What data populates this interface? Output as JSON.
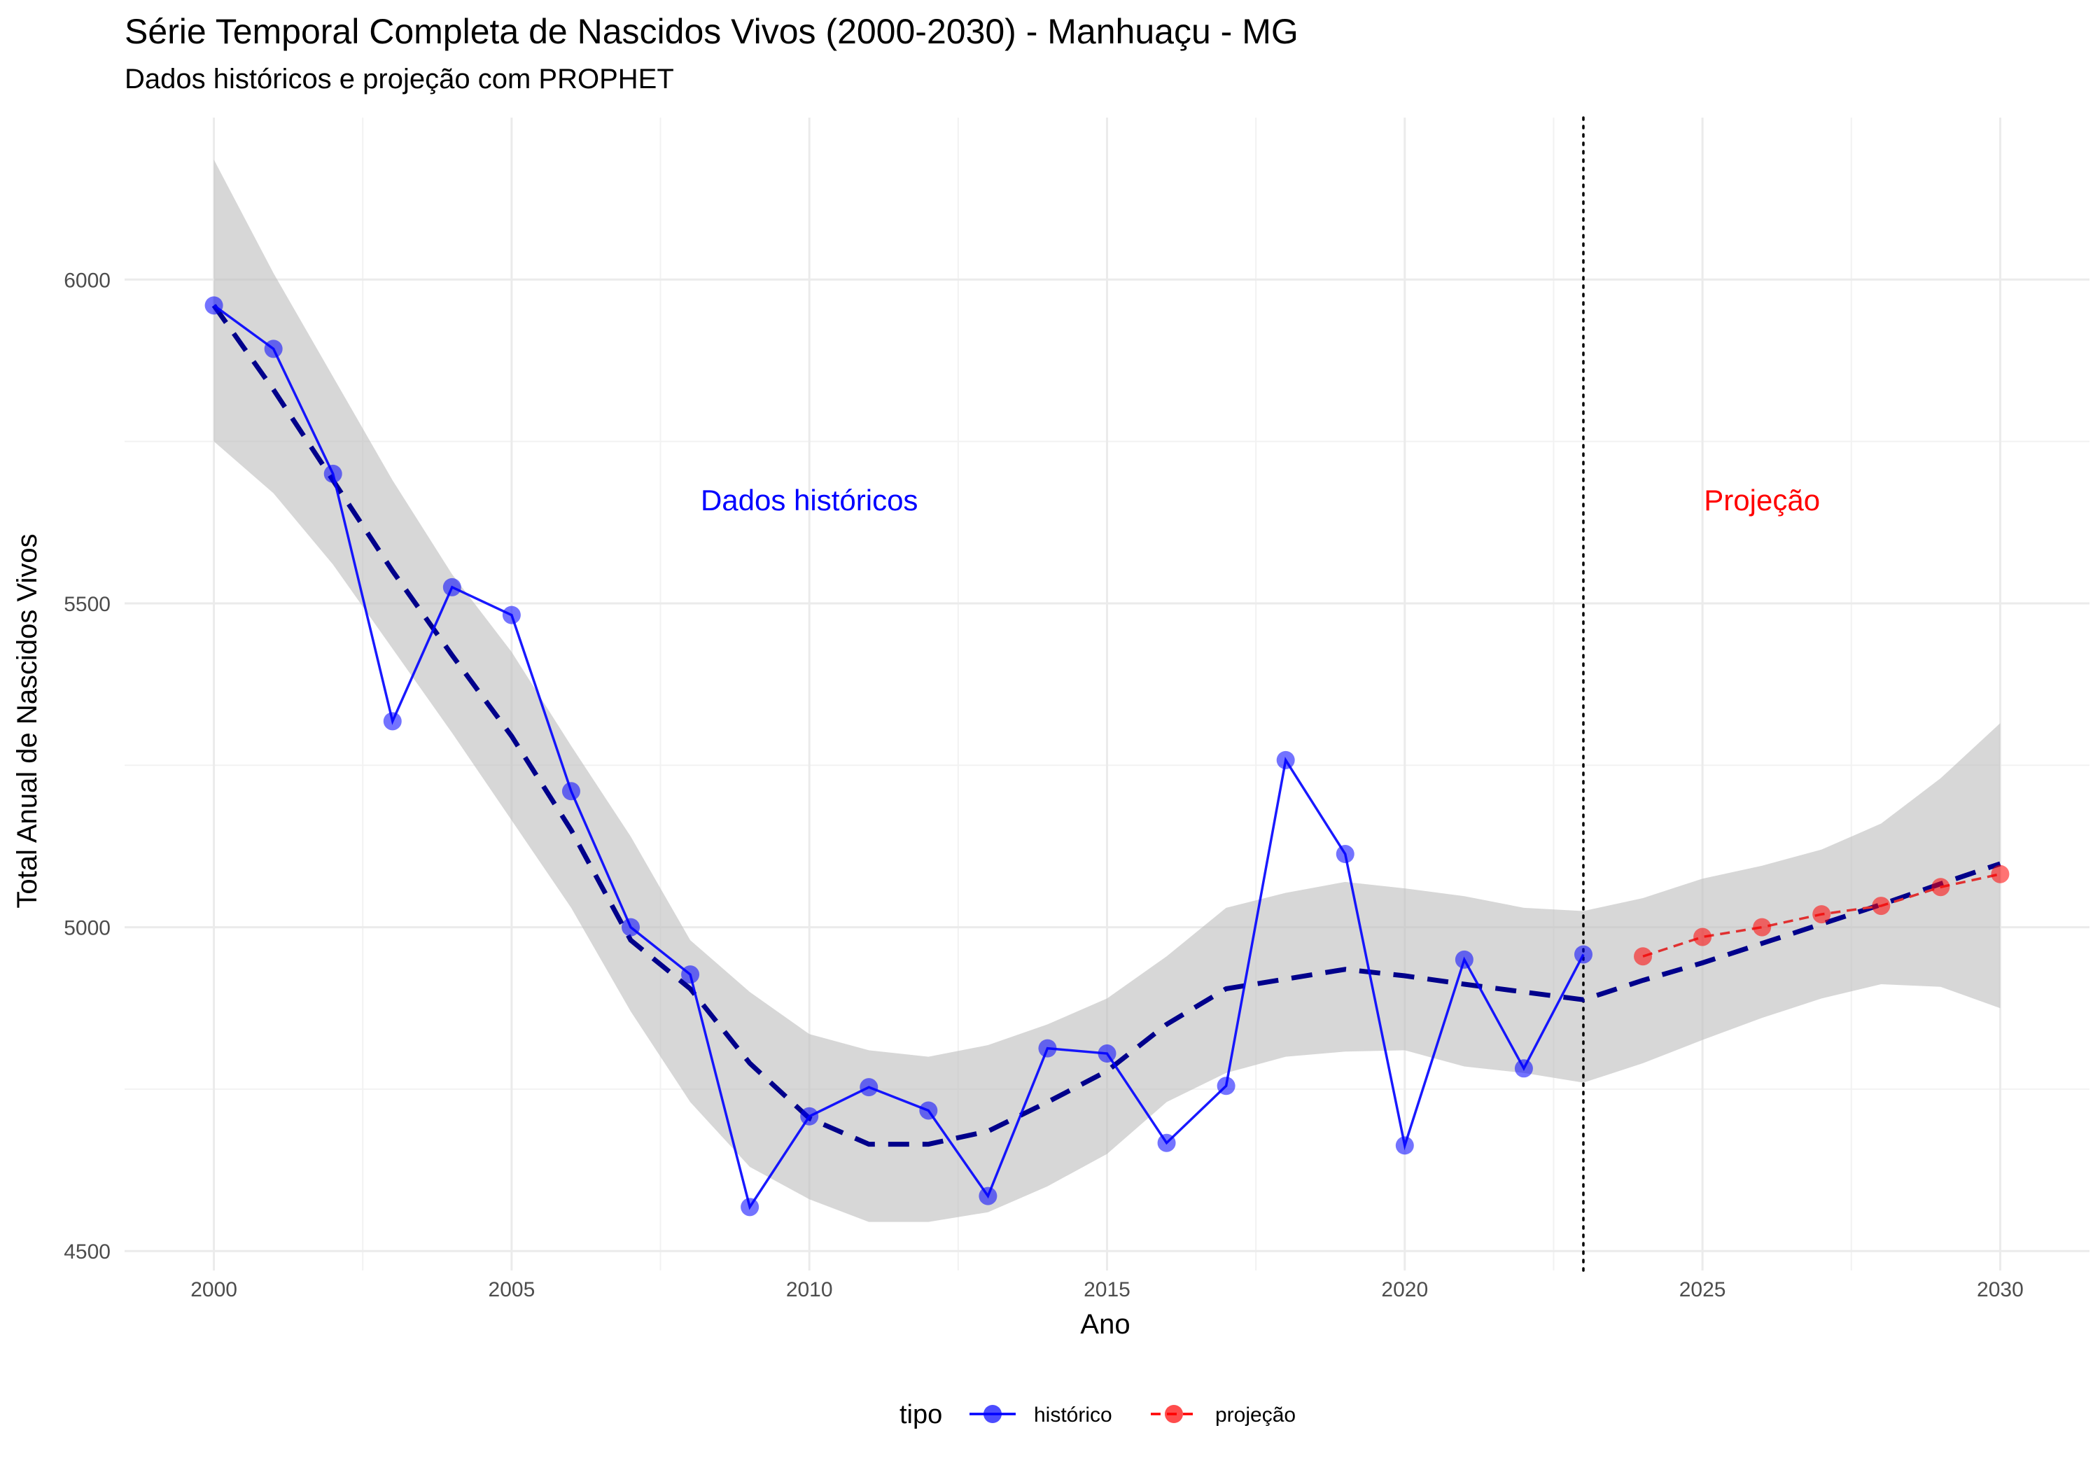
{
  "chart_data": {
    "type": "line",
    "title": "Série Temporal Completa de Nascidos Vivos (2000-2030) -  Manhuaçu - MG",
    "subtitle": "Dados históricos e projeção com PROPHET",
    "xlabel": "Ano",
    "ylabel": "Total Anual de Nascidos Vivos",
    "xlim": [
      1998.5,
      2031.5
    ],
    "ylim": [
      4470,
      6250
    ],
    "x_ticks": [
      2000,
      2005,
      2010,
      2015,
      2020,
      2025,
      2030
    ],
    "y_ticks": [
      4500,
      5000,
      5500,
      6000
    ],
    "grid": true,
    "legend": {
      "position": "bottom",
      "title": "tipo",
      "entries": [
        {
          "label": "histórico",
          "color": "#0000ff"
        },
        {
          "label": "projeção",
          "color": "#ff0000"
        }
      ]
    },
    "annotations": [
      {
        "text": "Dados históricos",
        "x": 2010,
        "y": 5660,
        "color": "#0000ff"
      },
      {
        "text": "Projeção",
        "x": 2026,
        "y": 5660,
        "color": "#ff0000"
      }
    ],
    "divider_x": 2023,
    "series": [
      {
        "name": "histórico",
        "color": "#0000ff",
        "x": [
          2000,
          2001,
          2002,
          2003,
          2004,
          2005,
          2006,
          2007,
          2008,
          2009,
          2010,
          2011,
          2012,
          2013,
          2014,
          2015,
          2016,
          2017,
          2018,
          2019,
          2020,
          2021,
          2022,
          2023
        ],
        "y": [
          5960,
          5893,
          5700,
          5318,
          5525,
          5482,
          5210,
          5000,
          4927,
          4568,
          4708,
          4753,
          4717,
          4585,
          4813,
          4805,
          4667,
          4755,
          5258,
          5113,
          4663,
          4950,
          4782,
          4958
        ]
      },
      {
        "name": "projeção",
        "color": "#ff0000",
        "x": [
          2024,
          2025,
          2026,
          2027,
          2028,
          2029,
          2030
        ],
        "y": [
          4955,
          4985,
          5000,
          5020,
          5033,
          5062,
          5082
        ]
      }
    ],
    "trend": {
      "color": "#00008b",
      "x": [
        2000,
        2001,
        2002,
        2003,
        2004,
        2005,
        2006,
        2007,
        2008,
        2009,
        2010,
        2011,
        2012,
        2013,
        2014,
        2015,
        2016,
        2017,
        2018,
        2019,
        2020,
        2021,
        2022,
        2023,
        2024,
        2025,
        2026,
        2027,
        2028,
        2029,
        2030
      ],
      "y": [
        5960,
        5830,
        5690,
        5550,
        5420,
        5295,
        5150,
        4980,
        4905,
        4790,
        4705,
        4665,
        4665,
        4685,
        4730,
        4778,
        4850,
        4905,
        4920,
        4935,
        4925,
        4912,
        4900,
        4888,
        4918,
        4945,
        4975,
        5005,
        5035,
        5067,
        5098
      ],
      "lower": [
        5750,
        5670,
        5560,
        5430,
        5300,
        5165,
        5030,
        4870,
        4730,
        4630,
        4580,
        4545,
        4545,
        4560,
        4600,
        4650,
        4730,
        4775,
        4800,
        4808,
        4810,
        4785,
        4775,
        4760,
        4790,
        4826,
        4860,
        4890,
        4912,
        4908,
        4875
      ],
      "upper": [
        6185,
        6010,
        5850,
        5690,
        5545,
        5425,
        5280,
        5140,
        4980,
        4900,
        4835,
        4810,
        4800,
        4818,
        4850,
        4890,
        4955,
        5030,
        5053,
        5070,
        5060,
        5048,
        5030,
        5025,
        5045,
        5075,
        5095,
        5120,
        5160,
        5230,
        5315
      ]
    }
  }
}
